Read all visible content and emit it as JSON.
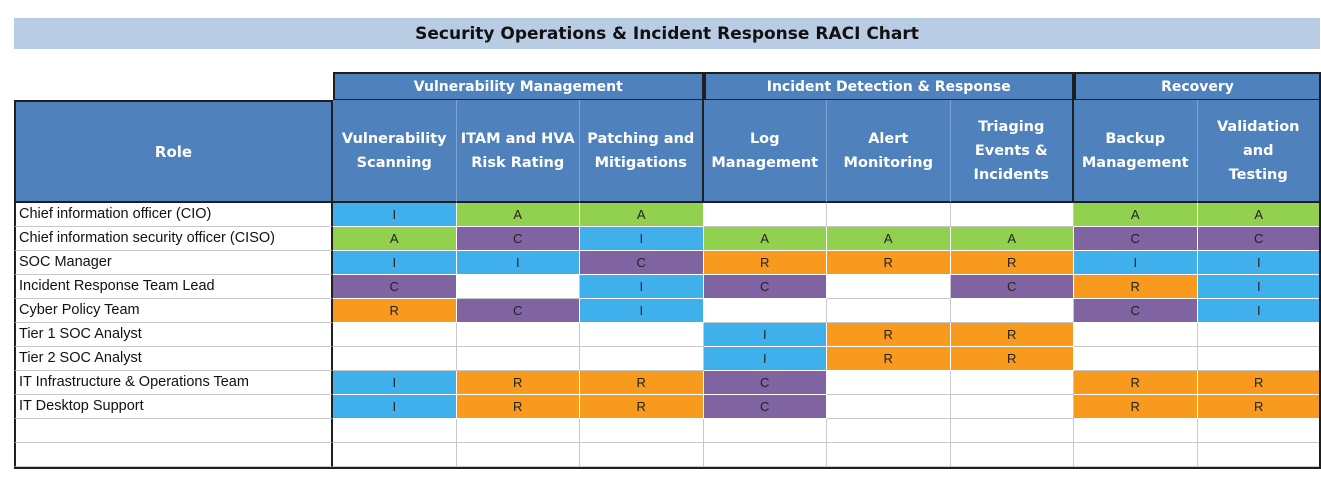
{
  "title": "Security Operations & Incident Response RACI Chart",
  "role_header": "Role",
  "groups": [
    {
      "label": "Vulnerability Management",
      "span": 3
    },
    {
      "label": "Incident Detection & Response",
      "span": 3
    },
    {
      "label": "Recovery",
      "span": 2
    }
  ],
  "columns": [
    "Vulnerability\nScanning",
    "ITAM and HVA\nRisk Rating",
    "Patching and\nMitigations",
    "Log\nManagement",
    "Alert\nMonitoring",
    "Triaging\nEvents &\nIncidents",
    "Backup\nManagement",
    "Validation and\nTesting"
  ],
  "colors": {
    "R": "#f79a1e",
    "A": "#92d050",
    "C": "#8064a2",
    "I": "#3fb0ec",
    "header": "#4f81bd",
    "title_bg": "#b8cce4"
  },
  "rows": [
    {
      "role": "Chief information officer (CIO)",
      "cells": [
        "I",
        "A",
        "A",
        "",
        "",
        "",
        "A",
        "A"
      ]
    },
    {
      "role": "Chief information security officer (CISO)",
      "cells": [
        "A",
        "C",
        "I",
        "A",
        "A",
        "A",
        "C",
        "C"
      ]
    },
    {
      "role": "SOC Manager",
      "cells": [
        "I",
        "I",
        "C",
        "R",
        "R",
        "R",
        "I",
        "I"
      ]
    },
    {
      "role": "Incident Response Team Lead",
      "cells": [
        "C",
        "",
        "I",
        "C",
        "",
        "C",
        "R",
        "I"
      ]
    },
    {
      "role": "Cyber Policy Team",
      "cells": [
        "R",
        "C",
        "I",
        "",
        "",
        "",
        "C",
        "I"
      ]
    },
    {
      "role": "Tier 1 SOC Analyst",
      "cells": [
        "",
        "",
        "",
        "I",
        "R",
        "R",
        "",
        ""
      ]
    },
    {
      "role": "Tier 2 SOC Analyst",
      "cells": [
        "",
        "",
        "",
        "I",
        "R",
        "R",
        "",
        ""
      ]
    },
    {
      "role": "IT Infrastructure & Operations Team",
      "cells": [
        "I",
        "R",
        "R",
        "C",
        "",
        "",
        "R",
        "R"
      ]
    },
    {
      "role": "IT Desktop Support",
      "cells": [
        "I",
        "R",
        "R",
        "C",
        "",
        "",
        "R",
        "R"
      ]
    },
    {
      "role": "",
      "cells": [
        "",
        "",
        "",
        "",
        "",
        "",
        "",
        ""
      ]
    },
    {
      "role": "",
      "cells": [
        "",
        "",
        "",
        "",
        "",
        "",
        "",
        ""
      ]
    }
  ]
}
